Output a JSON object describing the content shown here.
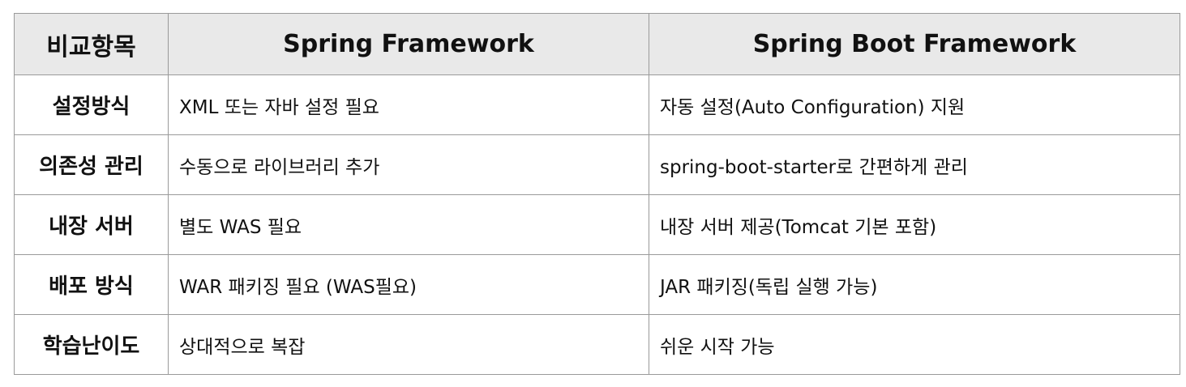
{
  "table": {
    "headers": [
      "비교항목",
      "Spring Framework",
      "Spring Boot Framework"
    ],
    "rows": [
      [
        "설정방식",
        "XML 또는 자바 설정 필요",
        "자동 설정(Auto Configuration) 지원"
      ],
      [
        "의존성 관리",
        "수동으로 라이브러리 추가",
        "spring-boot-starter로 간편하게 관리"
      ],
      [
        "내장 서버",
        "별도 WAS 필요",
        "내장 서버 제공(Tomcat 기본 포함)"
      ],
      [
        "배포 방식",
        "WAR 패키징 필요 (WAS필요)",
        "JAR 패키징(독립 실행 가능)"
      ],
      [
        "학습난이도",
        "상대적으로 복잡",
        "쉬운 시작 가능"
      ]
    ]
  },
  "colors": {
    "header_bg": "#e9e9e9",
    "border": "#9a9a9a",
    "text": "#111111"
  }
}
